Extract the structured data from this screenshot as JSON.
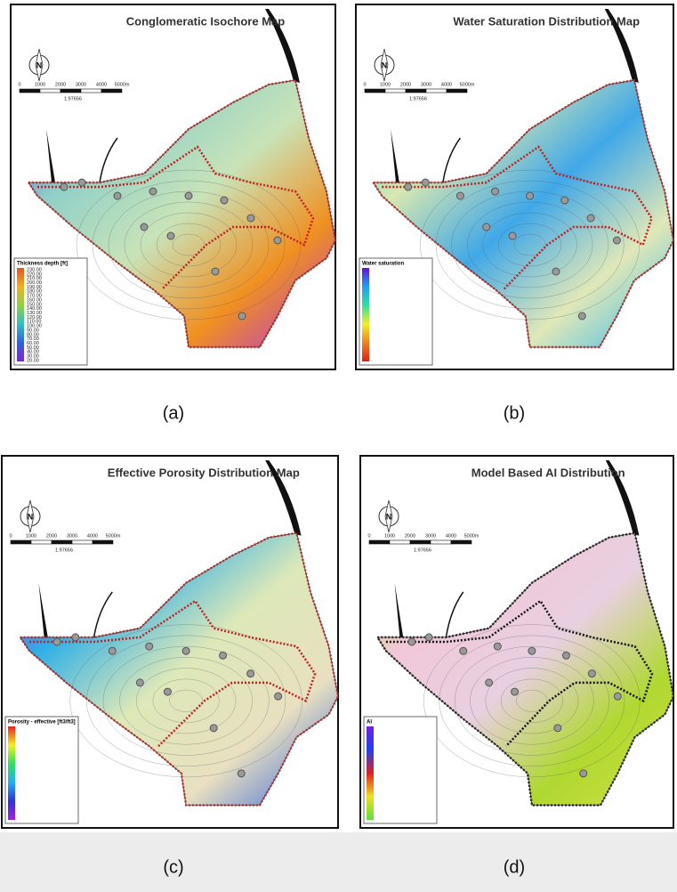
{
  "north": "N",
  "scale_labels": [
    "0",
    "1000",
    "2000",
    "3000",
    "4000",
    "5000m"
  ],
  "scale_ratio": "1:97656",
  "panels": [
    {
      "title": "Conglomeratic Isochore Map",
      "caption": "(a)",
      "legend_title": "Thickness depth [ft]",
      "legend_labels": [
        "230.00",
        "220.00",
        "210.00",
        "200.00",
        "190.00",
        "180.00",
        "170.00",
        "160.00",
        "150.00",
        "140.00",
        "130.00",
        "120.00",
        "110.00",
        "100.00",
        "90.00",
        "80.00",
        "70.00",
        "60.00",
        "50.00",
        "40.00",
        "30.00",
        "20.00"
      ]
    },
    {
      "title": "Water Saturation Distribution Map",
      "caption": "(b)",
      "legend_title": "Water saturation"
    },
    {
      "title": "Effective Porosity Distribution Map",
      "caption": "(c)",
      "legend_title": "Porosity - effective [ft3/ft3]"
    },
    {
      "title": "Model Based AI Distribution",
      "caption": "(d)",
      "legend_title": "AI"
    }
  ]
}
